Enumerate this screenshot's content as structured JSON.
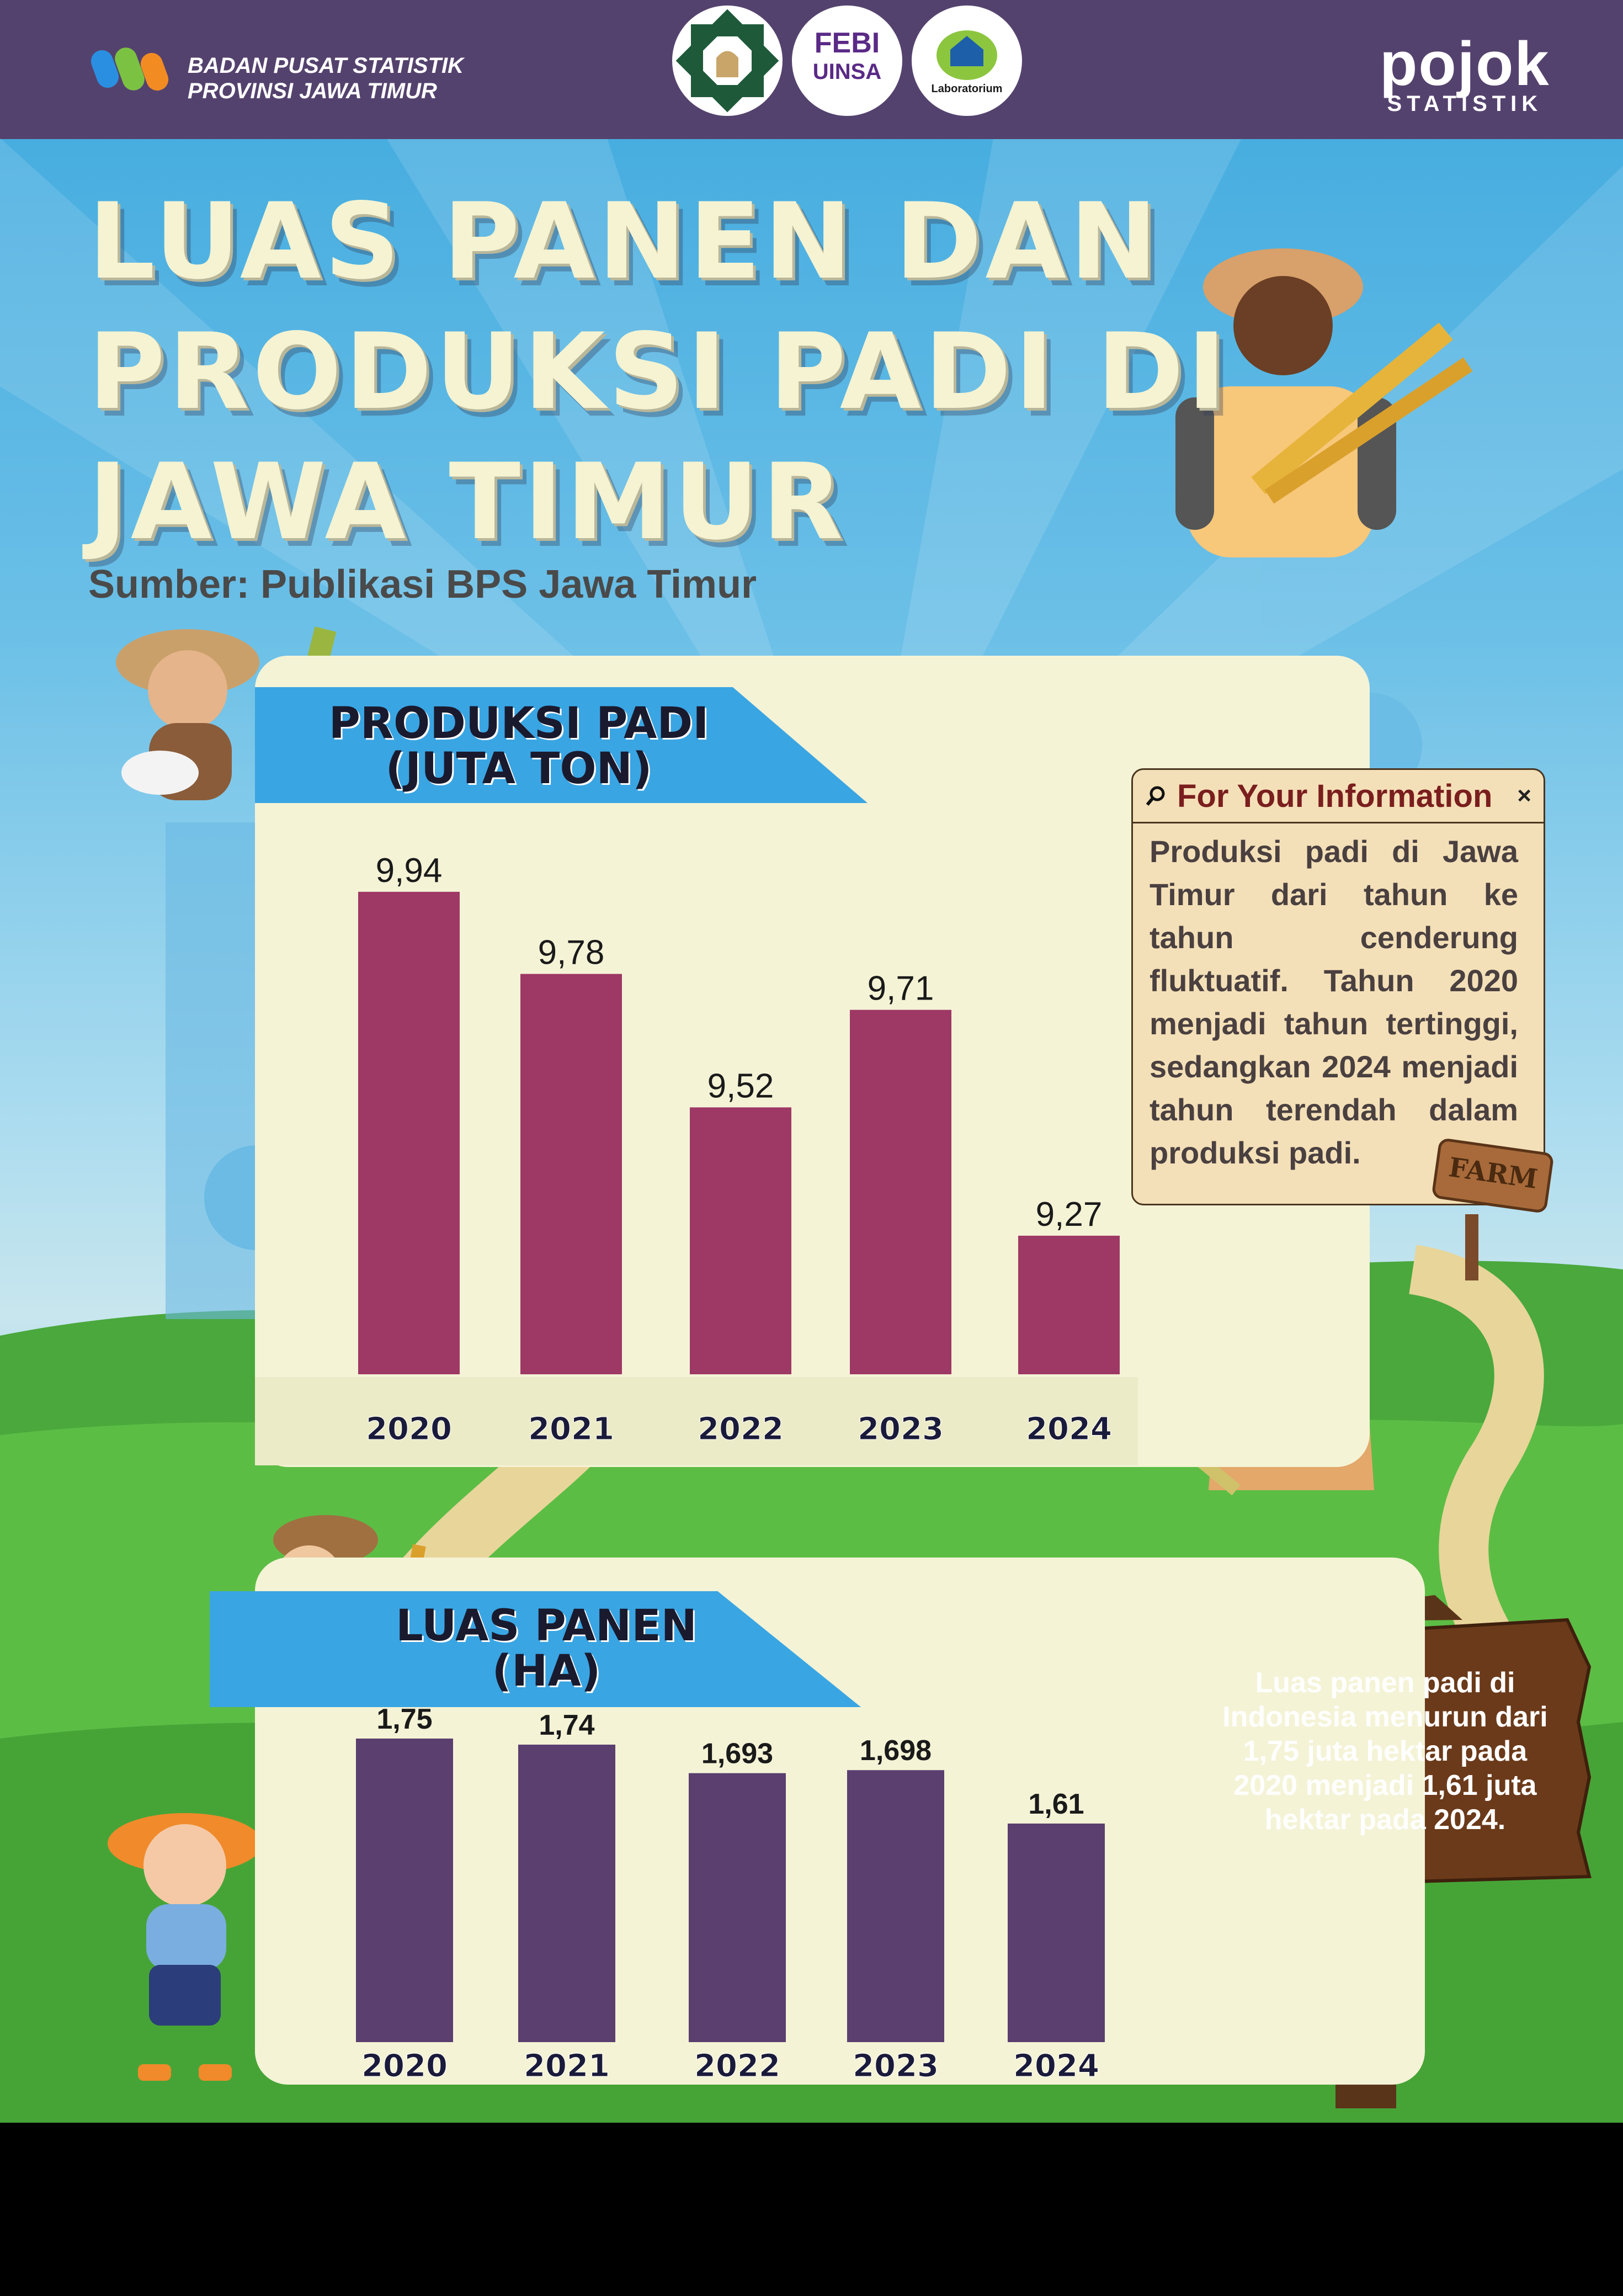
{
  "colors": {
    "header_bg": "#54426e",
    "ribbon": "#3aa5e3",
    "production_bar": "#9e3865",
    "area_bar": "#5a3f6f",
    "panel_bg": "#f4f3d6"
  },
  "header": {
    "bps_line1": "BADAN PUSAT STATISTIK",
    "bps_line2": "PROVINSI JAWA TIMUR",
    "logo_febi_1": "FEBI",
    "logo_febi_2": "UINSA",
    "logo_lab": "Laboratorium",
    "pojok_1": "pojok",
    "pojok_2": "STATISTIK"
  },
  "title": {
    "line1": "LUAS PANEN DAN",
    "line2": "PRODUKSI PADI DI",
    "line3": "JAWA TIMUR"
  },
  "source": "Sumber: Publikasi BPS Jawa Timur",
  "fyi": {
    "title": "For Your Information",
    "close": "×",
    "body": "Produksi padi di Jawa Timur dari tahun ke tahun cenderung fluktuatif. Tahun 2020 menjadi tahun tertinggi, sedangkan 2024 menjadi tahun terendah dalam produksi padi.",
    "farm_sign": "FARM"
  },
  "sign_note": "Luas panen padi di Indonesia menurun dari 1,75 juta hektar pada 2020 menjadi 1,61 juta hektar pada 2024.",
  "chart_data": [
    {
      "type": "bar",
      "title_line1": "PRODUKSI PADI",
      "title_line2": "(JUTA TON)",
      "categories": [
        "2020",
        "2021",
        "2022",
        "2023",
        "2024"
      ],
      "values": [
        9.94,
        9.78,
        9.52,
        9.71,
        9.27
      ],
      "labels": [
        "9,94",
        "9,78",
        "9,52",
        "9,71",
        "9,27"
      ],
      "ylim": [
        9.0,
        10.0
      ],
      "grid": false,
      "color": "#9e3865"
    },
    {
      "type": "bar",
      "title_line1": "LUAS PANEN",
      "title_line2": "(HA)",
      "categories": [
        "2020",
        "2021",
        "2022",
        "2023",
        "2024"
      ],
      "values": [
        1.75,
        1.74,
        1.693,
        1.698,
        1.61
      ],
      "labels": [
        "1,75",
        "1,74",
        "1,693",
        "1,698",
        "1,61"
      ],
      "ylim": [
        1.25,
        1.8
      ],
      "grid": false,
      "color": "#5a3f6f"
    }
  ]
}
